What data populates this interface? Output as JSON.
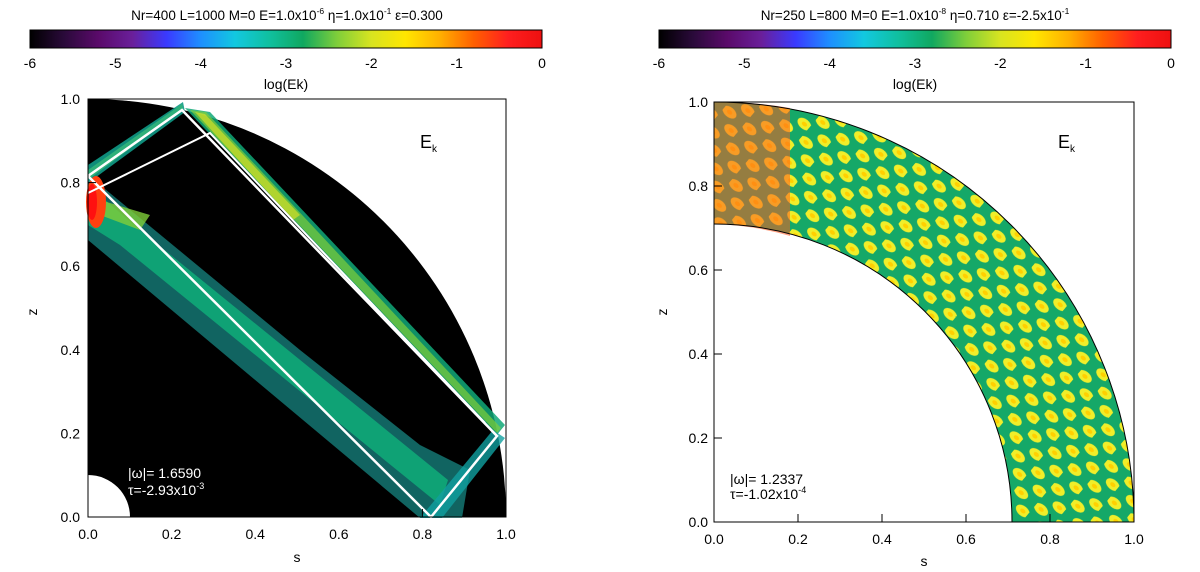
{
  "colors": {
    "colormap": [
      "#000000",
      "#2a0a3a",
      "#5a0a6a",
      "#6a1f9a",
      "#3a3aff",
      "#1e8fff",
      "#12c8e0",
      "#10c0a0",
      "#10a860",
      "#7fce3a",
      "#d8e420",
      "#ffe600",
      "#ffb000",
      "#ff6000",
      "#ff1f1f",
      "#ee1010"
    ],
    "domain_black": "#000000",
    "wave_green": "#15a868",
    "wave_yellow": "#f0ee2a",
    "outline": "#ffffff"
  },
  "chart_data": [
    {
      "type": "heatmap",
      "title": "Nr=400 L=1000 M=0 E=1.0x10^-6 η=1.0x10^-1 ε=0.300",
      "title_parts": {
        "prefix": "Nr=400 L=1000 M=0 E=1.0x10",
        "exp1": "-6",
        "mid": " η=1.0x10",
        "exp2": "-1",
        "suffix": " ε=0.300"
      },
      "colorbar": {
        "label": "log(Ek)",
        "range": [
          -6,
          0
        ],
        "tick_labels": [
          "-6",
          "-5",
          "-4",
          "-3",
          "-2",
          "-1",
          "0"
        ]
      },
      "xlabel": "s",
      "ylabel": "z",
      "xlim": [
        0,
        1
      ],
      "ylim": [
        0,
        1
      ],
      "x_tick_labels": [
        "0.0",
        "0.2",
        "0.4",
        "0.6",
        "0.8",
        "1.0"
      ],
      "y_tick_labels": [
        "0.0",
        "0.2",
        "0.4",
        "0.6",
        "0.8",
        "1.0"
      ],
      "inner_radius": 0.1,
      "annotation_label": {
        "main": "E",
        "sub": "k"
      },
      "omega_text": "|ω|= 1.6590",
      "tau_text": "τ=-2.93x10",
      "tau_exp": "-3",
      "attractor_vertices": [
        [
          0.0,
          0.815
        ],
        [
          0.225,
          0.975
        ],
        [
          0.98,
          0.195
        ],
        [
          0.815,
          0.0
        ],
        [
          0.0,
          0.815
        ]
      ],
      "inner_edge_vertices": [
        [
          0.0,
          0.775
        ],
        [
          0.29,
          0.915
        ],
        [
          0.95,
          0.2
        ],
        [
          0.84,
          0.07
        ]
      ],
      "background": "black"
    },
    {
      "type": "heatmap",
      "title": "Nr=250 L=800 M=0 E=1.0x10^-8 η=0.710 ε=-2.5x10^-1",
      "title_parts": {
        "prefix": "Nr=250 L=800 M=0 E=1.0x10",
        "exp1": "-8",
        "mid": " η=0.710 ε=-2.5x10",
        "exp2": "-1",
        "suffix": ""
      },
      "colorbar": {
        "label": "log(Ek)",
        "range": [
          -6,
          0
        ],
        "tick_labels": [
          "-6",
          "-5",
          "-4",
          "-3",
          "-2",
          "-1",
          "0"
        ]
      },
      "xlabel": "s",
      "ylabel": "z",
      "xlim": [
        0,
        1
      ],
      "ylim": [
        0,
        1
      ],
      "x_tick_labels": [
        "0.0",
        "0.2",
        "0.4",
        "0.6",
        "0.8",
        "1.0"
      ],
      "y_tick_labels": [
        "0.0",
        "0.2",
        "0.4",
        "0.6",
        "0.8",
        "1.0"
      ],
      "inner_radius": 0.71,
      "annotation_label": {
        "main": "E",
        "sub": "k"
      },
      "omega_text": "|ω|= 1.2337",
      "tau_text": "τ=-1.02x10",
      "tau_exp": "-4",
      "background": "white"
    }
  ]
}
